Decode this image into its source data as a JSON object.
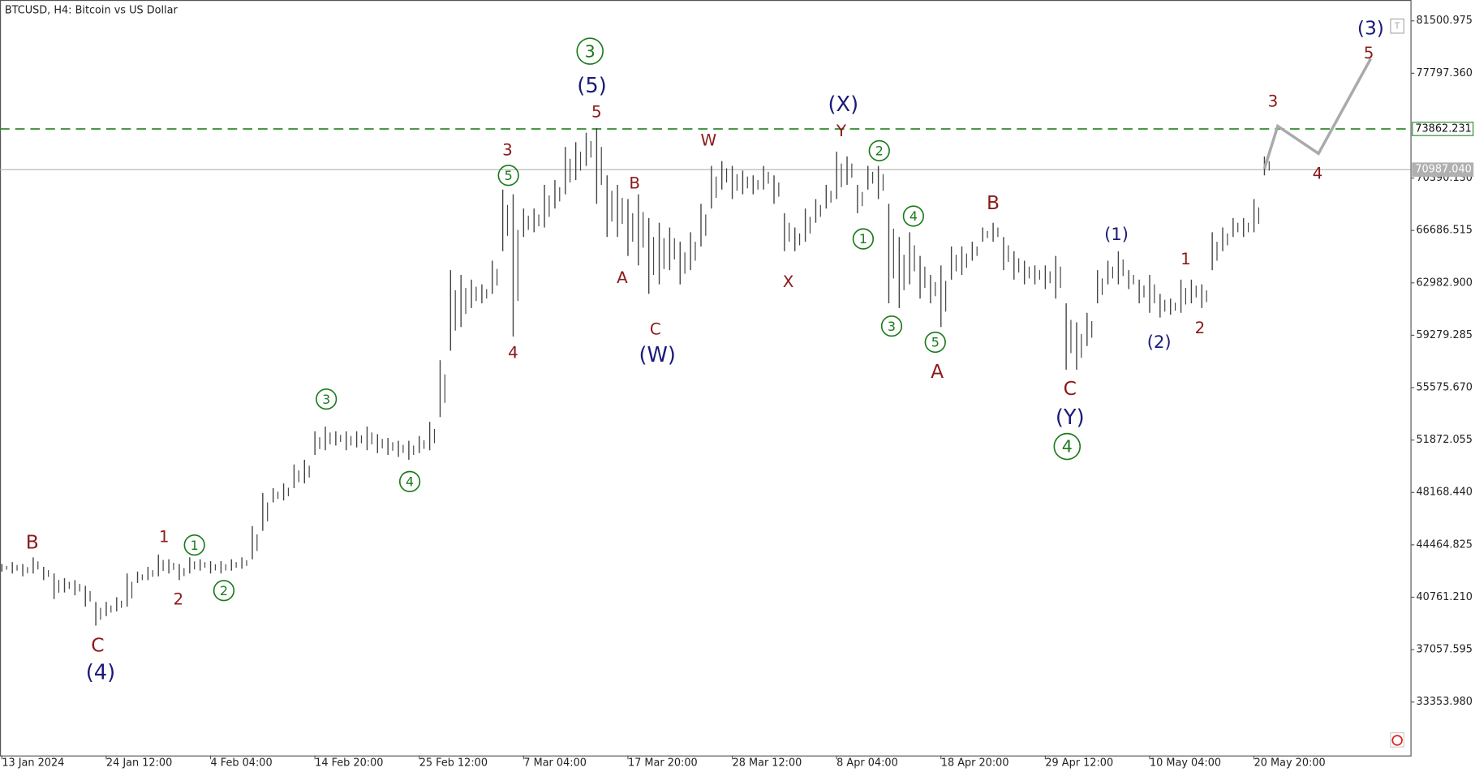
{
  "chart_data": {
    "type": "ohlc_range",
    "title": "BTCUSD, H4:  Bitcoin vs US Dollar",
    "bar_color": "#444444",
    "categories": [
      "13 Jan 2024",
      null,
      null,
      null,
      null,
      null,
      null,
      null,
      null,
      null,
      "24 Jan 12:00",
      null,
      null,
      null,
      null,
      null,
      null,
      null,
      null,
      null,
      "4 Feb 04:00",
      null,
      null,
      null,
      null,
      null,
      null,
      null,
      null,
      null,
      "14 Feb 20:00",
      null,
      null,
      null,
      null,
      null,
      null,
      null,
      null,
      null,
      "25 Feb 12:00",
      null,
      null,
      null,
      null,
      null,
      null,
      null,
      null,
      null,
      "7 Mar 04:00",
      null,
      null,
      null,
      null,
      null,
      null,
      null,
      null,
      null,
      "17 Mar 20:00",
      null,
      null,
      null,
      null,
      null,
      null,
      null,
      null,
      null,
      "28 Mar 12:00",
      null,
      null,
      null,
      null,
      null,
      null,
      null,
      null,
      null,
      "8 Apr 04:00",
      null,
      null,
      null,
      null,
      null,
      null,
      null,
      null,
      null,
      "18 Apr 20:00",
      null,
      null,
      null,
      null,
      null,
      null,
      null,
      null,
      null,
      "29 Apr 12:00",
      null,
      null,
      null,
      null,
      null,
      null,
      null,
      null,
      null,
      "10 May 04:00",
      null,
      null,
      null,
      null,
      null,
      null,
      null,
      null,
      null,
      "20 May 20:00",
      null
    ],
    "high": [
      43110,
      43244,
      43110,
      43579,
      42909,
      42440,
      42105,
      41971,
      41569,
      40430,
      40430,
      40765,
      42440,
      42574,
      42909,
      43780,
      43445,
      43110,
      43579,
      43445,
      43311,
      43311,
      43445,
      43579,
      45790,
      48135,
      48470,
      48805,
      50145,
      50480,
      52490,
      52825,
      52490,
      52490,
      52490,
      52825,
      52289,
      52021,
      51820,
      51820,
      52155,
      53160,
      57515,
      63880,
      63545,
      63210,
      62875,
      64550,
      69575,
      69240,
      68235,
      68235,
      69910,
      70245,
      72590,
      72925,
      73595,
      73930,
      70580,
      69910,
      68905,
      69240,
      67565,
      67230,
      66895,
      65890,
      66560,
      68570,
      71250,
      71585,
      71250,
      70915,
      70580,
      71250,
      70580,
      67900,
      66895,
      68235,
      68905,
      69910,
      72255,
      71920,
      69910,
      71250,
      71250,
      68570,
      66225,
      66560,
      64885,
      63545,
      64215,
      65555,
      65555,
      65890,
      66895,
      67230,
      66225,
      65220,
      64550,
      64215,
      64215,
      64885,
      61535,
      60195,
      60865,
      63880,
      64550,
      65220,
      63880,
      63210,
      63545,
      62205,
      61870,
      63210,
      63210,
      62875,
      66560,
      66895,
      67565,
      67565,
      68905,
      71920
    ],
    "low": [
      42574,
      42440,
      42239,
      42440,
      41971,
      40631,
      41100,
      40899,
      40095,
      38755,
      39425,
      39760,
      40095,
      41770,
      41971,
      42239,
      42440,
      41971,
      42440,
      42641,
      42440,
      42440,
      42641,
      42775,
      43445,
      45455,
      47465,
      47599,
      48470,
      48805,
      50815,
      51150,
      51485,
      51150,
      51351,
      51150,
      50949,
      50815,
      50681,
      50480,
      50949,
      51150,
      53495,
      58185,
      59860,
      61200,
      61535,
      62205,
      65220,
      59190,
      66225,
      66560,
      66895,
      68235,
      69240,
      70245,
      71250,
      68570,
      66225,
      66225,
      64885,
      64215,
      62205,
      62875,
      63880,
      62875,
      63880,
      65555,
      68235,
      69575,
      68905,
      69240,
      69240,
      69575,
      68570,
      65220,
      65220,
      65890,
      67230,
      68235,
      68905,
      69910,
      67900,
      69575,
      68905,
      61535,
      61200,
      62875,
      61870,
      61535,
      59860,
      63210,
      63545,
      64550,
      65890,
      65890,
      63880,
      63210,
      62875,
      62875,
      62540,
      61870,
      56845,
      56845,
      58520,
      61535,
      62875,
      62875,
      62540,
      61535,
      60865,
      60530,
      60731,
      60865,
      61535,
      61200,
      63880,
      65220,
      66225,
      66225,
      66560,
      70580
    ],
    "ylim": [
      29576,
      82975
    ],
    "yticks": [
      {
        "value": 33353.98,
        "label": "33353.980"
      },
      37057.595,
      {
        "value": 40761.21,
        "label": "40761.210"
      },
      44464.825,
      {
        "value": 48168.44,
        "label": "48168.440"
      },
      51872.055,
      {
        "value": 55575.67,
        "label": "55575.670"
      },
      59279.285,
      {
        "value": 62982.9,
        "label": "62982.900"
      },
      66686.515,
      {
        "value": 70390.13,
        "label": "70390.130"
      },
      {
        "value": 77797.36,
        "label": "77797.360"
      },
      81500.975
    ],
    "levels": [
      {
        "value": 73862.231,
        "color": "#2e8b2e",
        "style": "dashed"
      },
      {
        "value": 70987.04,
        "label": "70987.040",
        "color": "#b0b0b0",
        "style": "solid"
      }
    ],
    "annotations": [
      {
        "text": "B",
        "color": "#8b1a1a"
      },
      {
        "text": "C",
        "color": "#8b1a1a"
      },
      {
        "text": "(4)",
        "color": "#1a1a7a"
      },
      {
        "text": "1",
        "color": "#8b1a1a"
      },
      {
        "text": "2",
        "color": "#8b1a1a"
      },
      {
        "text": "1",
        "color": "#1a7a1a",
        "circled": true
      },
      {
        "text": "2",
        "color": "#1a7a1a",
        "circled": true
      },
      {
        "text": "3",
        "color": "#1a7a1a",
        "circled": true
      },
      {
        "text": "4",
        "color": "#1a7a1a",
        "circled": true
      },
      {
        "text": "3",
        "color": "#8b1a1a"
      },
      {
        "text": "5",
        "color": "#1a7a1a",
        "circled": true
      },
      {
        "text": "4",
        "color": "#8b1a1a"
      },
      {
        "text": "3",
        "color": "#1a7a1a",
        "circled": true
      },
      {
        "text": "(5)",
        "color": "#1a1a7a"
      },
      {
        "text": "5",
        "color": "#8b1a1a"
      },
      {
        "text": "B",
        "color": "#8b1a1a"
      },
      {
        "text": "A",
        "color": "#8b1a1a"
      },
      {
        "text": "C",
        "color": "#8b1a1a"
      },
      {
        "text": "(W)",
        "color": "#1a1a7a"
      },
      {
        "text": "W",
        "color": "#8b1a1a"
      },
      {
        "text": "X",
        "color": "#8b1a1a"
      },
      {
        "text": "(X)",
        "color": "#1a1a7a"
      },
      {
        "text": "Y",
        "color": "#8b1a1a"
      },
      {
        "text": "2",
        "color": "#1a7a1a",
        "circled": true
      },
      {
        "text": "1",
        "color": "#1a7a1a",
        "circled": true
      },
      {
        "text": "4",
        "color": "#1a7a1a",
        "circled": true
      },
      {
        "text": "3",
        "color": "#1a7a1a",
        "circled": true
      },
      {
        "text": "5",
        "color": "#1a7a1a",
        "circled": true
      },
      {
        "text": "A",
        "color": "#8b1a1a"
      },
      {
        "text": "B",
        "color": "#8b1a1a"
      },
      {
        "text": "(1)",
        "color": "#1a1a7a"
      },
      {
        "text": "(2)",
        "color": "#1a1a7a"
      },
      {
        "text": "C",
        "color": "#8b1a1a"
      },
      {
        "text": "(Y)",
        "color": "#1a1a7a"
      },
      {
        "text": "4",
        "color": "#1a7a1a",
        "circled": true
      },
      {
        "text": "1",
        "color": "#8b1a1a"
      },
      {
        "text": "2",
        "color": "#8b1a1a"
      },
      {
        "text": "3",
        "color": "#8b1a1a"
      },
      {
        "text": "4",
        "color": "#8b1a1a"
      },
      {
        "text": "5",
        "color": "#8b1a1a"
      },
      {
        "text": "(3)",
        "color": "#1a1a7a"
      }
    ]
  }
}
